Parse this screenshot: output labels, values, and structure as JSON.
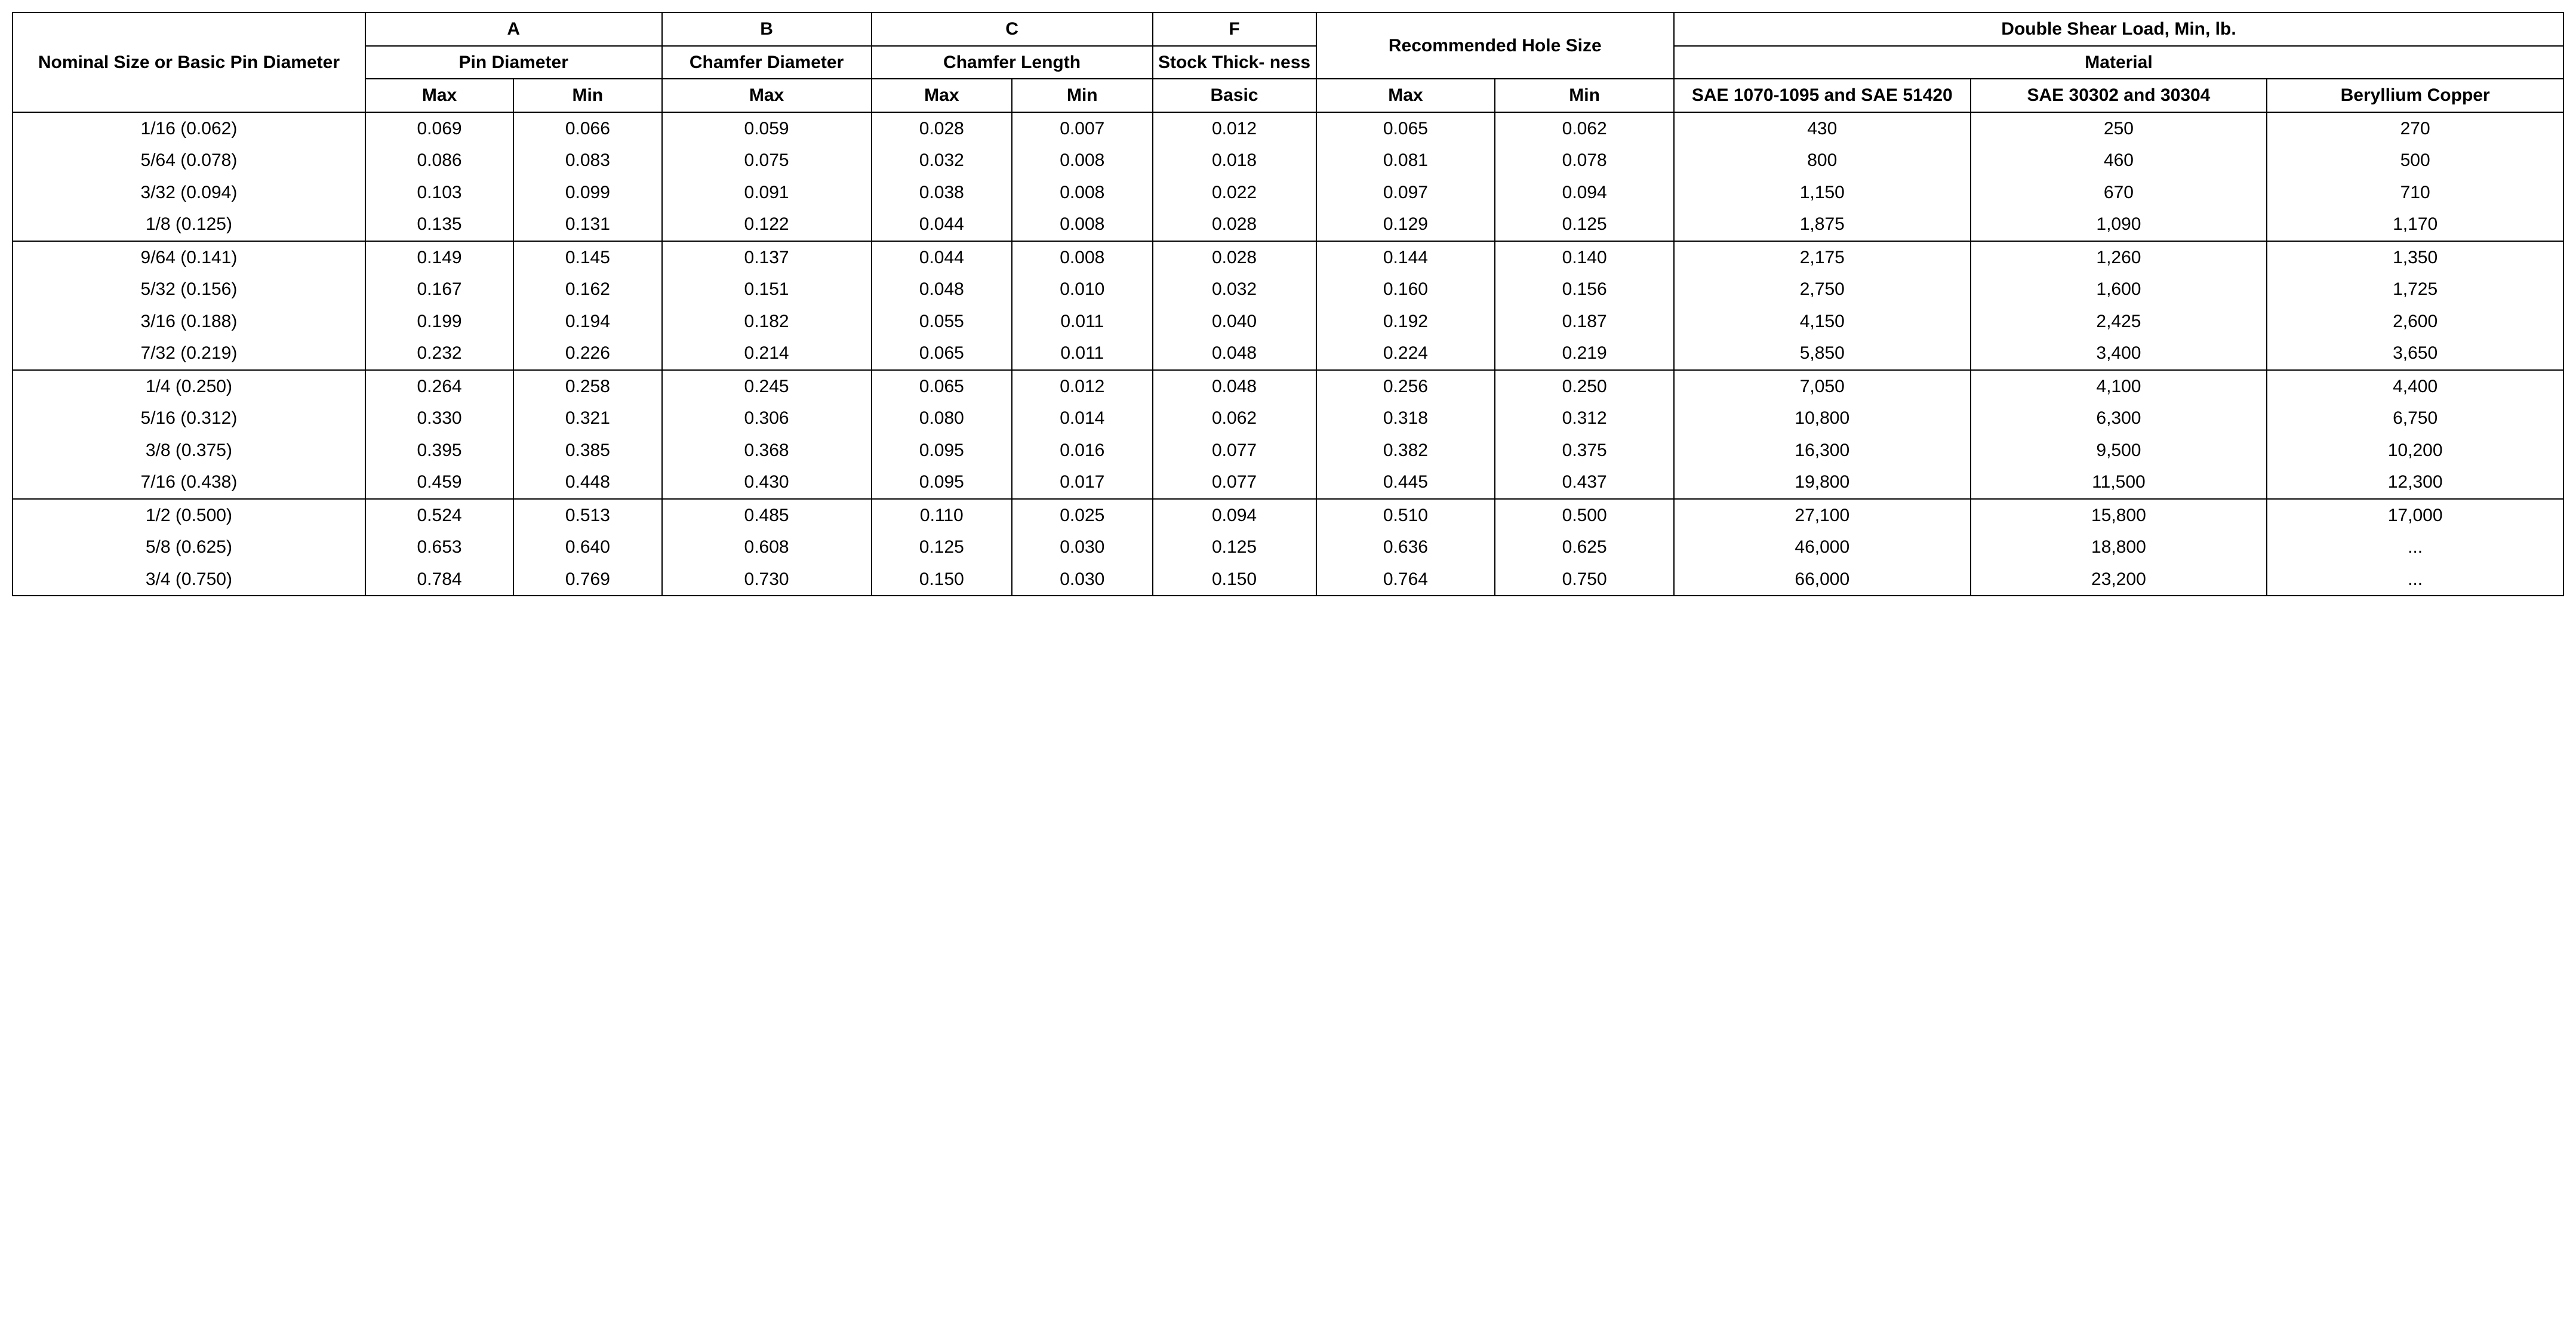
{
  "headers": {
    "nominal": "Nominal Size or Basic Pin Diameter",
    "top": {
      "A": "A",
      "B": "B",
      "C": "C",
      "F": "F",
      "shear": "Double Shear Load, Min, lb."
    },
    "mid": {
      "pin_dia": "Pin Diameter",
      "chamfer_dia": "Chamfer Diameter",
      "chamfer_len": "Chamfer Length",
      "stock": "Stock Thick-\nness",
      "hole": "Recommended Hole Size",
      "material": "Material"
    },
    "sub": {
      "max": "Max",
      "min": "Min",
      "basic": "Basic",
      "sae1070": "SAE 1070-1095 and SAE 51420",
      "sae30302": "SAE 30302 and 30304",
      "becu": "Beryllium Copper"
    }
  },
  "groups": [
    [
      {
        "nom": "1/16 (0.062)",
        "Amax": "0.069",
        "Amin": "0.066",
        "Bmax": "0.059",
        "Cmax": "0.028",
        "Cmin": "0.007",
        "F": "0.012",
        "Hmax": "0.065",
        "Hmin": "0.062",
        "S1": "430",
        "S2": "250",
        "S3": "270"
      },
      {
        "nom": "5/64 (0.078)",
        "Amax": "0.086",
        "Amin": "0.083",
        "Bmax": "0.075",
        "Cmax": "0.032",
        "Cmin": "0.008",
        "F": "0.018",
        "Hmax": "0.081",
        "Hmin": "0.078",
        "S1": "800",
        "S2": "460",
        "S3": "500"
      },
      {
        "nom": "3/32 (0.094)",
        "Amax": "0.103",
        "Amin": "0.099",
        "Bmax": "0.091",
        "Cmax": "0.038",
        "Cmin": "0.008",
        "F": "0.022",
        "Hmax": "0.097",
        "Hmin": "0.094",
        "S1": "1,150",
        "S2": "670",
        "S3": "710"
      },
      {
        "nom": "1/8 (0.125)",
        "Amax": "0.135",
        "Amin": "0.131",
        "Bmax": "0.122",
        "Cmax": "0.044",
        "Cmin": "0.008",
        "F": "0.028",
        "Hmax": "0.129",
        "Hmin": "0.125",
        "S1": "1,875",
        "S2": "1,090",
        "S3": "1,170"
      }
    ],
    [
      {
        "nom": "9/64 (0.141)",
        "Amax": "0.149",
        "Amin": "0.145",
        "Bmax": "0.137",
        "Cmax": "0.044",
        "Cmin": "0.008",
        "F": "0.028",
        "Hmax": "0.144",
        "Hmin": "0.140",
        "S1": "2,175",
        "S2": "1,260",
        "S3": "1,350"
      },
      {
        "nom": "5/32 (0.156)",
        "Amax": "0.167",
        "Amin": "0.162",
        "Bmax": "0.151",
        "Cmax": "0.048",
        "Cmin": "0.010",
        "F": "0.032",
        "Hmax": "0.160",
        "Hmin": "0.156",
        "S1": "2,750",
        "S2": "1,600",
        "S3": "1,725"
      },
      {
        "nom": "3/16 (0.188)",
        "Amax": "0.199",
        "Amin": "0.194",
        "Bmax": "0.182",
        "Cmax": "0.055",
        "Cmin": "0.011",
        "F": "0.040",
        "Hmax": "0.192",
        "Hmin": "0.187",
        "S1": "4,150",
        "S2": "2,425",
        "S3": "2,600"
      },
      {
        "nom": "7/32 (0.219)",
        "Amax": "0.232",
        "Amin": "0.226",
        "Bmax": "0.214",
        "Cmax": "0.065",
        "Cmin": "0.011",
        "F": "0.048",
        "Hmax": "0.224",
        "Hmin": "0.219",
        "S1": "5,850",
        "S2": "3,400",
        "S3": "3,650"
      }
    ],
    [
      {
        "nom": "1/4 (0.250)",
        "Amax": "0.264",
        "Amin": "0.258",
        "Bmax": "0.245",
        "Cmax": "0.065",
        "Cmin": "0.012",
        "F": "0.048",
        "Hmax": "0.256",
        "Hmin": "0.250",
        "S1": "7,050",
        "S2": "4,100",
        "S3": "4,400"
      },
      {
        "nom": "5/16 (0.312)",
        "Amax": "0.330",
        "Amin": "0.321",
        "Bmax": "0.306",
        "Cmax": "0.080",
        "Cmin": "0.014",
        "F": "0.062",
        "Hmax": "0.318",
        "Hmin": "0.312",
        "S1": "10,800",
        "S2": "6,300",
        "S3": "6,750"
      },
      {
        "nom": "3/8 (0.375)",
        "Amax": "0.395",
        "Amin": "0.385",
        "Bmax": "0.368",
        "Cmax": "0.095",
        "Cmin": "0.016",
        "F": "0.077",
        "Hmax": "0.382",
        "Hmin": "0.375",
        "S1": "16,300",
        "S2": "9,500",
        "S3": "10,200"
      },
      {
        "nom": "7/16 (0.438)",
        "Amax": "0.459",
        "Amin": "0.448",
        "Bmax": "0.430",
        "Cmax": "0.095",
        "Cmin": "0.017",
        "F": "0.077",
        "Hmax": "0.445",
        "Hmin": "0.437",
        "S1": "19,800",
        "S2": "11,500",
        "S3": "12,300"
      }
    ],
    [
      {
        "nom": "1/2 (0.500)",
        "Amax": "0.524",
        "Amin": "0.513",
        "Bmax": "0.485",
        "Cmax": "0.110",
        "Cmin": "0.025",
        "F": "0.094",
        "Hmax": "0.510",
        "Hmin": "0.500",
        "S1": "27,100",
        "S2": "15,800",
        "S3": "17,000"
      },
      {
        "nom": "5/8 (0.625)",
        "Amax": "0.653",
        "Amin": "0.640",
        "Bmax": "0.608",
        "Cmax": "0.125",
        "Cmin": "0.030",
        "F": "0.125",
        "Hmax": "0.636",
        "Hmin": "0.625",
        "S1": "46,000",
        "S2": "18,800",
        "S3": "..."
      },
      {
        "nom": "3/4 (0.750)",
        "Amax": "0.784",
        "Amin": "0.769",
        "Bmax": "0.730",
        "Cmax": "0.150",
        "Cmin": "0.030",
        "F": "0.150",
        "Hmax": "0.764",
        "Hmin": "0.750",
        "S1": "66,000",
        "S2": "23,200",
        "S3": "..."
      }
    ]
  ]
}
